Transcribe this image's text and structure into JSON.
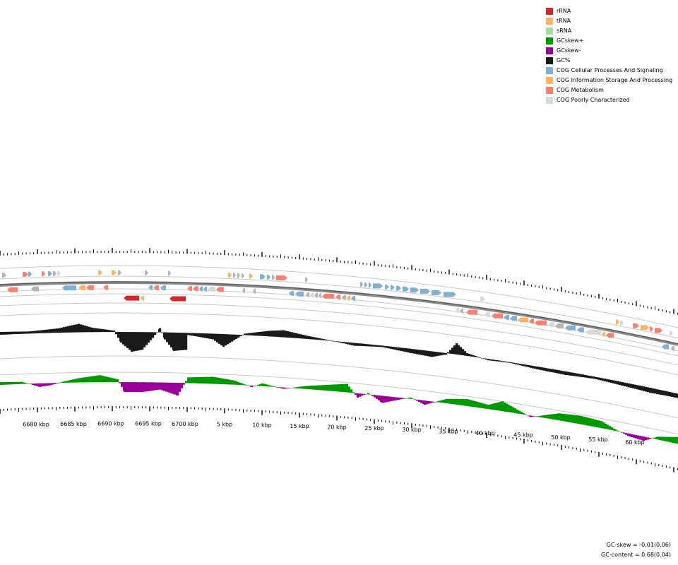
{
  "legend": [
    {
      "label": "rRNA",
      "color": "#d62728"
    },
    {
      "label": "tRNA",
      "color": "#fdb462"
    },
    {
      "label": "sRNA",
      "color": "#a6dba0"
    },
    {
      "label": "GCskew+",
      "color": "#009900"
    },
    {
      "label": "GCskew-",
      "color": "#990099"
    },
    {
      "label": "GC%",
      "color": "#1a1a1a"
    },
    {
      "label": "COG Cellular Processes And Signaling",
      "color": "#80b1d3"
    },
    {
      "label": "COG Information Storage And Processing",
      "color": "#fdb462"
    },
    {
      "label": "COG Metabolism",
      "color": "#fb8072"
    },
    {
      "label": "COG Poorly Characterized",
      "color": "#d9d9d9"
    }
  ],
  "scale_labels": [
    "6680 kbp",
    "6685 kbp",
    "6690 kbp",
    "6695 kbp",
    "6700 kbp",
    "5 kbp",
    "10 kbp",
    "15 kbp",
    "20 kbp",
    "25 kbp",
    "30 kbp",
    "35 kbp",
    "40 kbp",
    "45 kbp",
    "50 kbp",
    "55 kbp",
    "60 kbp"
  ],
  "stats": {
    "gc_skew": "GC-skew = -0.01(0.06)",
    "gc_content": "GC-content = 0.68(0.04)"
  },
  "colors": {
    "rRNA": "#d62728",
    "tRNA": "#fdb462",
    "info": "#fdb462",
    "cell": "#80b1d3",
    "meta": "#fb8072",
    "poor": "#d9d9d9",
    "none": "#b4b4b4",
    "gc": "#1a1a1a",
    "skew_pos": "#009900",
    "skew_neg": "#990099",
    "track": "#c8c8c8",
    "backbone": "#8a8a8a"
  },
  "features": {
    "outer_fwd": [
      {
        "pos": 3,
        "len": 6,
        "cat": "none",
        "dir": 1
      },
      {
        "pos": 32,
        "len": 8,
        "cat": "meta",
        "dir": 1
      },
      {
        "pos": 40,
        "len": 5,
        "cat": "cell",
        "dir": 1
      },
      {
        "pos": 59,
        "len": 5,
        "cat": "meta",
        "dir": 1
      },
      {
        "pos": 68,
        "len": 6,
        "cat": "cell",
        "dir": 1
      },
      {
        "pos": 75,
        "len": 5,
        "cat": "none",
        "dir": 1
      },
      {
        "pos": 81,
        "len": 5,
        "cat": "poor",
        "dir": 1
      },
      {
        "pos": 139,
        "len": 6,
        "cat": "info",
        "dir": 1
      },
      {
        "pos": 158,
        "len": 7,
        "cat": "info",
        "dir": 1
      },
      {
        "pos": 167,
        "len": 5,
        "cat": "none",
        "dir": 1
      },
      {
        "pos": 205,
        "len": 5,
        "cat": "none",
        "dir": 1
      },
      {
        "pos": 238,
        "len": 4,
        "cat": "none",
        "dir": 1
      },
      {
        "pos": 323,
        "len": 5,
        "cat": "info",
        "dir": 1
      },
      {
        "pos": 330,
        "len": 4,
        "cat": "none",
        "dir": 1
      },
      {
        "pos": 336,
        "len": 4,
        "cat": "none",
        "dir": 1
      },
      {
        "pos": 342,
        "len": 4,
        "cat": "none",
        "dir": 1
      },
      {
        "pos": 353,
        "len": 5,
        "cat": "info",
        "dir": 1
      },
      {
        "pos": 368,
        "len": 8,
        "cat": "cell",
        "dir": 1
      },
      {
        "pos": 378,
        "len": 5,
        "cat": "cell",
        "dir": 1
      },
      {
        "pos": 385,
        "len": 4,
        "cat": "none",
        "dir": 1
      },
      {
        "pos": 391,
        "len": 16,
        "cat": "meta",
        "dir": 1
      },
      {
        "pos": 432,
        "len": 4,
        "cat": "none",
        "dir": 1
      },
      {
        "pos": 510,
        "len": 4,
        "cat": "cell",
        "dir": 1
      },
      {
        "pos": 516,
        "len": 4,
        "cat": "cell",
        "dir": 1
      },
      {
        "pos": 522,
        "len": 4,
        "cat": "cell",
        "dir": 1
      },
      {
        "pos": 528,
        "len": 14,
        "cat": "cell",
        "dir": 1
      },
      {
        "pos": 545,
        "len": 6,
        "cat": "cell",
        "dir": 1
      },
      {
        "pos": 553,
        "len": 6,
        "cat": "cell",
        "dir": 1
      },
      {
        "pos": 561,
        "len": 7,
        "cat": "cell",
        "dir": 1
      },
      {
        "pos": 570,
        "len": 9,
        "cat": "cell",
        "dir": 1
      },
      {
        "pos": 581,
        "len": 12,
        "cat": "cell",
        "dir": 1
      },
      {
        "pos": 595,
        "len": 14,
        "cat": "cell",
        "dir": 1
      },
      {
        "pos": 611,
        "len": 14,
        "cat": "cell",
        "dir": 1
      },
      {
        "pos": 628,
        "len": 18,
        "cat": "cell",
        "dir": 1
      },
      {
        "pos": 680,
        "len": 7,
        "cat": "poor",
        "dir": 1
      },
      {
        "pos": 872,
        "len": 5,
        "cat": "info",
        "dir": 1
      },
      {
        "pos": 878,
        "len": 5,
        "cat": "poor",
        "dir": 1
      },
      {
        "pos": 896,
        "len": 9,
        "cat": "meta",
        "dir": 1
      },
      {
        "pos": 907,
        "len": 12,
        "cat": "info",
        "dir": 1
      },
      {
        "pos": 920,
        "len": 5,
        "cat": "meta",
        "dir": 1
      },
      {
        "pos": 927,
        "len": 11,
        "cat": "meta",
        "dir": 1
      },
      {
        "pos": 948,
        "len": 5,
        "cat": "poor",
        "dir": 1
      }
    ],
    "outer_rev": [
      {
        "pos": 10,
        "len": 15,
        "cat": "meta",
        "dir": -1
      },
      {
        "pos": 44,
        "len": 11,
        "cat": "none",
        "dir": -1
      },
      {
        "pos": 88,
        "len": 20,
        "cat": "cell",
        "dir": -1
      },
      {
        "pos": 111,
        "len": 10,
        "cat": "info",
        "dir": -1
      },
      {
        "pos": 122,
        "len": 11,
        "cat": "meta",
        "dir": -1
      },
      {
        "pos": 146,
        "len": 7,
        "cat": "meta",
        "dir": -1
      },
      {
        "pos": 210,
        "len": 6,
        "cat": "cell",
        "dir": -1
      },
      {
        "pos": 217,
        "len": 8,
        "cat": "meta",
        "dir": -1
      },
      {
        "pos": 227,
        "len": 8,
        "cat": "cell",
        "dir": -1
      },
      {
        "pos": 265,
        "len": 7,
        "cat": "meta",
        "dir": -1
      },
      {
        "pos": 273,
        "len": 8,
        "cat": "meta",
        "dir": -1
      },
      {
        "pos": 282,
        "len": 5,
        "cat": "cell",
        "dir": -1
      },
      {
        "pos": 288,
        "len": 5,
        "cat": "cell",
        "dir": -1
      },
      {
        "pos": 294,
        "len": 11,
        "cat": "poor",
        "dir": -1
      },
      {
        "pos": 306,
        "len": 11,
        "cat": "meta",
        "dir": -1
      },
      {
        "pos": 343,
        "len": 4,
        "cat": "none",
        "dir": -1
      },
      {
        "pos": 358,
        "len": 4,
        "cat": "none",
        "dir": -1
      },
      {
        "pos": 409,
        "len": 7,
        "cat": "cell",
        "dir": -1
      },
      {
        "pos": 418,
        "len": 12,
        "cat": "cell",
        "dir": -1
      },
      {
        "pos": 433,
        "len": 5,
        "cat": "none",
        "dir": -1
      },
      {
        "pos": 439,
        "len": 5,
        "cat": "poor",
        "dir": -1
      },
      {
        "pos": 445,
        "len": 5,
        "cat": "none",
        "dir": -1
      },
      {
        "pos": 451,
        "len": 4,
        "cat": "none",
        "dir": -1
      },
      {
        "pos": 456,
        "len": 17,
        "cat": "meta",
        "dir": -1
      },
      {
        "pos": 475,
        "len": 7,
        "cat": "meta",
        "dir": -1
      },
      {
        "pos": 484,
        "len": 6,
        "cat": "none",
        "dir": -1
      },
      {
        "pos": 491,
        "len": 5,
        "cat": "info",
        "dir": -1
      },
      {
        "pos": 497,
        "len": 6,
        "cat": "cell",
        "dir": -1
      },
      {
        "pos": 645,
        "len": 5,
        "cat": "poor",
        "dir": -1
      },
      {
        "pos": 651,
        "len": 5,
        "cat": "none",
        "dir": -1
      },
      {
        "pos": 660,
        "len": 16,
        "cat": "meta",
        "dir": -1
      },
      {
        "pos": 686,
        "len": 8,
        "cat": "poor",
        "dir": -1
      },
      {
        "pos": 696,
        "len": 16,
        "cat": "meta",
        "dir": -1
      },
      {
        "pos": 713,
        "len": 8,
        "cat": "cell",
        "dir": -1
      },
      {
        "pos": 722,
        "len": 10,
        "cat": "cell",
        "dir": -1
      },
      {
        "pos": 733,
        "len": 15,
        "cat": "info",
        "dir": -1
      },
      {
        "pos": 749,
        "len": 7,
        "cat": "meta",
        "dir": -1
      },
      {
        "pos": 757,
        "len": 17,
        "cat": "meta",
        "dir": -1
      },
      {
        "pos": 776,
        "len": 9,
        "cat": "poor",
        "dir": -1
      },
      {
        "pos": 786,
        "len": 12,
        "cat": "none",
        "dir": -1
      },
      {
        "pos": 800,
        "len": 15,
        "cat": "cell",
        "dir": -1
      },
      {
        "pos": 817,
        "len": 10,
        "cat": "cell",
        "dir": -1
      },
      {
        "pos": 829,
        "len": 22,
        "cat": "poor",
        "dir": -1
      },
      {
        "pos": 852,
        "len": 5,
        "cat": "info",
        "dir": -1
      },
      {
        "pos": 858,
        "len": 11,
        "cat": "meta",
        "dir": -1
      },
      {
        "pos": 937,
        "len": 10,
        "cat": "cell",
        "dir": -1
      },
      {
        "pos": 950,
        "len": 5,
        "cat": "none",
        "dir": -1
      }
    ],
    "rna": [
      {
        "pos": 175,
        "len": 22,
        "cat": "rRNA",
        "dir": -1
      },
      {
        "pos": 199,
        "len": 5,
        "cat": "tRNA",
        "dir": -1
      },
      {
        "pos": 240,
        "len": 23,
        "cat": "rRNA",
        "dir": -1
      }
    ]
  },
  "gc_profile": [
    [
      0,
      4
    ],
    [
      40,
      3
    ],
    [
      80,
      6
    ],
    [
      110,
      12
    ],
    [
      130,
      6
    ],
    [
      160,
      2
    ],
    [
      170,
      -15
    ],
    [
      185,
      -28
    ],
    [
      200,
      -25
    ],
    [
      215,
      -8
    ],
    [
      225,
      6
    ],
    [
      232,
      -10
    ],
    [
      245,
      -26
    ],
    [
      262,
      -24
    ],
    [
      265,
      -3
    ],
    [
      300,
      -8
    ],
    [
      315,
      -18
    ],
    [
      330,
      -8
    ],
    [
      345,
      2
    ],
    [
      380,
      8
    ],
    [
      400,
      10
    ],
    [
      430,
      5
    ],
    [
      470,
      0
    ],
    [
      500,
      -4
    ],
    [
      540,
      -2
    ],
    [
      580,
      -6
    ],
    [
      610,
      -8
    ],
    [
      630,
      -2
    ],
    [
      645,
      16
    ],
    [
      660,
      4
    ],
    [
      690,
      -2
    ],
    [
      720,
      -1
    ],
    [
      760,
      -4
    ],
    [
      800,
      -5
    ],
    [
      840,
      -3
    ],
    [
      880,
      -5
    ],
    [
      920,
      -7
    ],
    [
      960,
      -6
    ]
  ],
  "skew_profile": [
    [
      0,
      4
    ],
    [
      30,
      3
    ],
    [
      55,
      -5
    ],
    [
      70,
      -3
    ],
    [
      90,
      2
    ],
    [
      110,
      6
    ],
    [
      140,
      10
    ],
    [
      165,
      4
    ],
    [
      175,
      -14
    ],
    [
      200,
      -14
    ],
    [
      225,
      -10
    ],
    [
      250,
      -18
    ],
    [
      265,
      8
    ],
    [
      300,
      10
    ],
    [
      330,
      6
    ],
    [
      355,
      -2
    ],
    [
      370,
      4
    ],
    [
      400,
      -2
    ],
    [
      430,
      4
    ],
    [
      460,
      8
    ],
    [
      490,
      12
    ],
    [
      505,
      -6
    ],
    [
      520,
      2
    ],
    [
      540,
      -10
    ],
    [
      560,
      -4
    ],
    [
      580,
      2
    ],
    [
      600,
      -6
    ],
    [
      630,
      6
    ],
    [
      660,
      10
    ],
    [
      690,
      6
    ],
    [
      710,
      14
    ],
    [
      740,
      2
    ],
    [
      750,
      -2
    ],
    [
      770,
      4
    ],
    [
      790,
      10
    ],
    [
      820,
      12
    ],
    [
      850,
      10
    ],
    [
      870,
      2
    ],
    [
      890,
      -4
    ],
    [
      910,
      -6
    ],
    [
      930,
      4
    ],
    [
      960,
      10
    ]
  ]
}
